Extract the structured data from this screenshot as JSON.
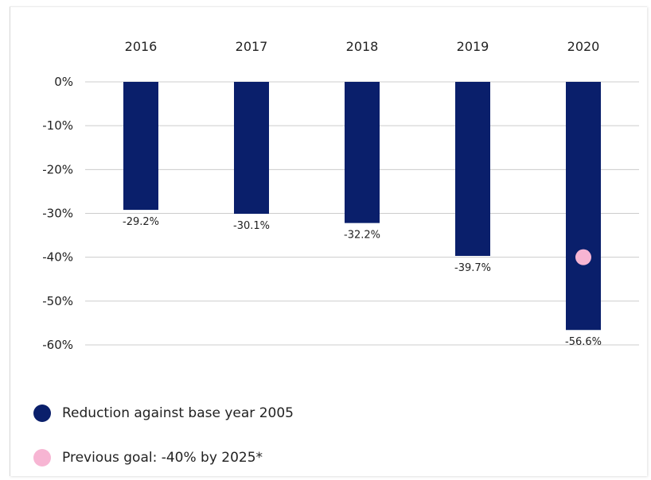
{
  "chart_data": {
    "type": "bar",
    "categories": [
      "2016",
      "2017",
      "2018",
      "2019",
      "2020"
    ],
    "series": [
      {
        "name": "Reduction against base year 2005",
        "values": [
          -29.2,
          -30.1,
          -32.2,
          -39.7,
          -56.6
        ]
      }
    ],
    "value_labels": [
      "-29.2%",
      "-30.1%",
      "-32.2%",
      "-39.7%",
      "-56.6%"
    ],
    "goal": {
      "name": "Previous goal: -40% by 2025*",
      "category": "2020",
      "value": -40
    },
    "y_ticks": [
      0,
      -10,
      -20,
      -30,
      -40,
      -50,
      -60
    ],
    "y_tick_labels": [
      "0%",
      "-10%",
      "-20%",
      "-30%",
      "-40%",
      "-50%",
      "-60%"
    ],
    "ylim": [
      -60,
      0
    ],
    "grid": true,
    "category_axis_position": "top",
    "legend_position": "bottom-left",
    "colors": {
      "bar": "#0a1f6b",
      "goal": "#f7b5d3",
      "grid": "#cccccc"
    }
  },
  "legend": {
    "items": [
      {
        "label": "Reduction against base year 2005",
        "color": "#0a1f6b"
      },
      {
        "label": "Previous goal: -40% by 2025*",
        "color": "#f7b5d3"
      }
    ]
  }
}
